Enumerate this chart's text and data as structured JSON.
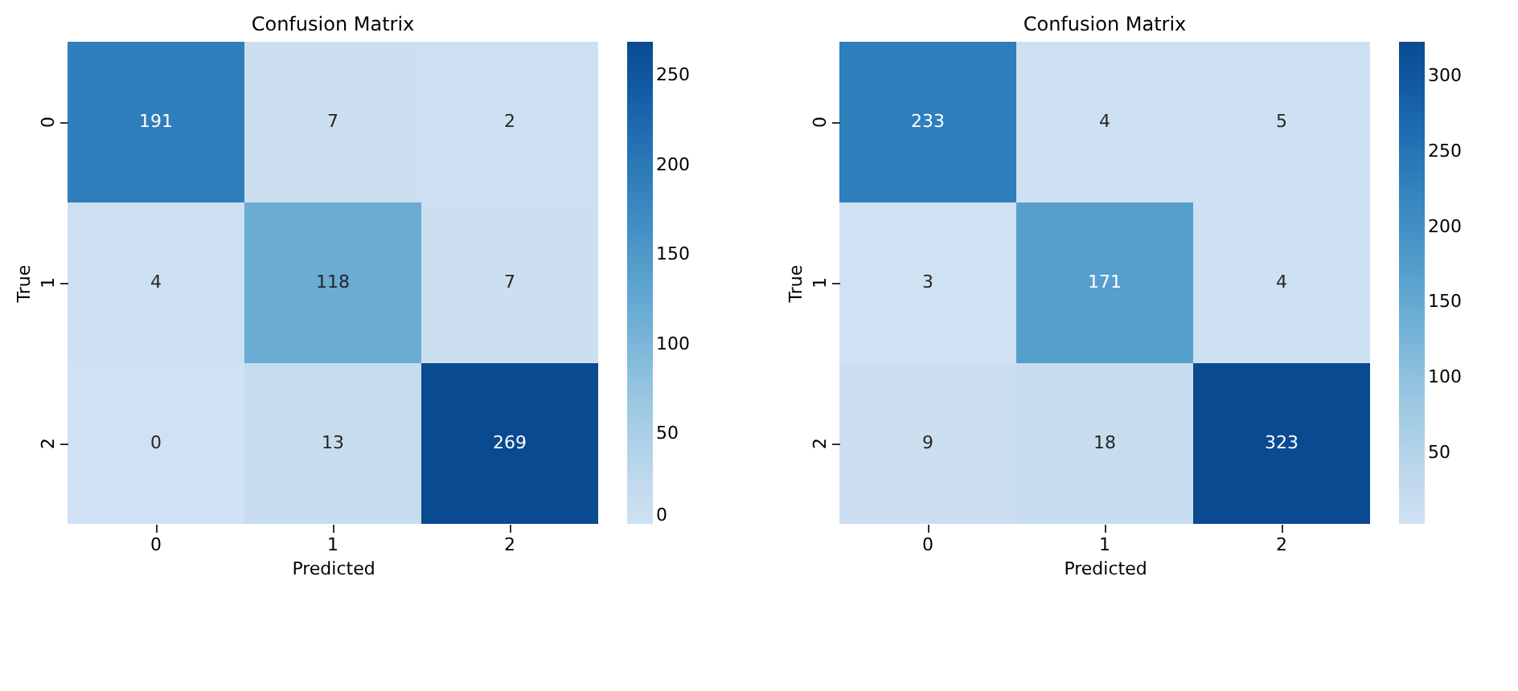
{
  "chart_data": [
    {
      "type": "heatmap",
      "title": "Confusion Matrix",
      "xlabel": "Predicted",
      "ylabel": "True",
      "categories": [
        "0",
        "1",
        "2"
      ],
      "y_categories": [
        "0",
        "1",
        "2"
      ],
      "cells": [
        [
          191,
          7,
          2
        ],
        [
          4,
          118,
          7
        ],
        [
          0,
          13,
          269
        ]
      ],
      "clim": [
        0,
        269
      ],
      "cticks": [
        0,
        50,
        100,
        150,
        200,
        250
      ],
      "data_labels": true
    },
    {
      "type": "heatmap",
      "title": "Confusion Matrix",
      "xlabel": "Predicted",
      "ylabel": "True",
      "categories": [
        "0",
        "1",
        "2"
      ],
      "y_categories": [
        "0",
        "1",
        "2"
      ],
      "cells": [
        [
          233,
          4,
          5
        ],
        [
          3,
          171,
          4
        ],
        [
          9,
          18,
          323
        ]
      ],
      "clim": [
        3,
        323
      ],
      "cticks": [
        50,
        100,
        150,
        200,
        250,
        300
      ],
      "data_labels": true
    }
  ]
}
